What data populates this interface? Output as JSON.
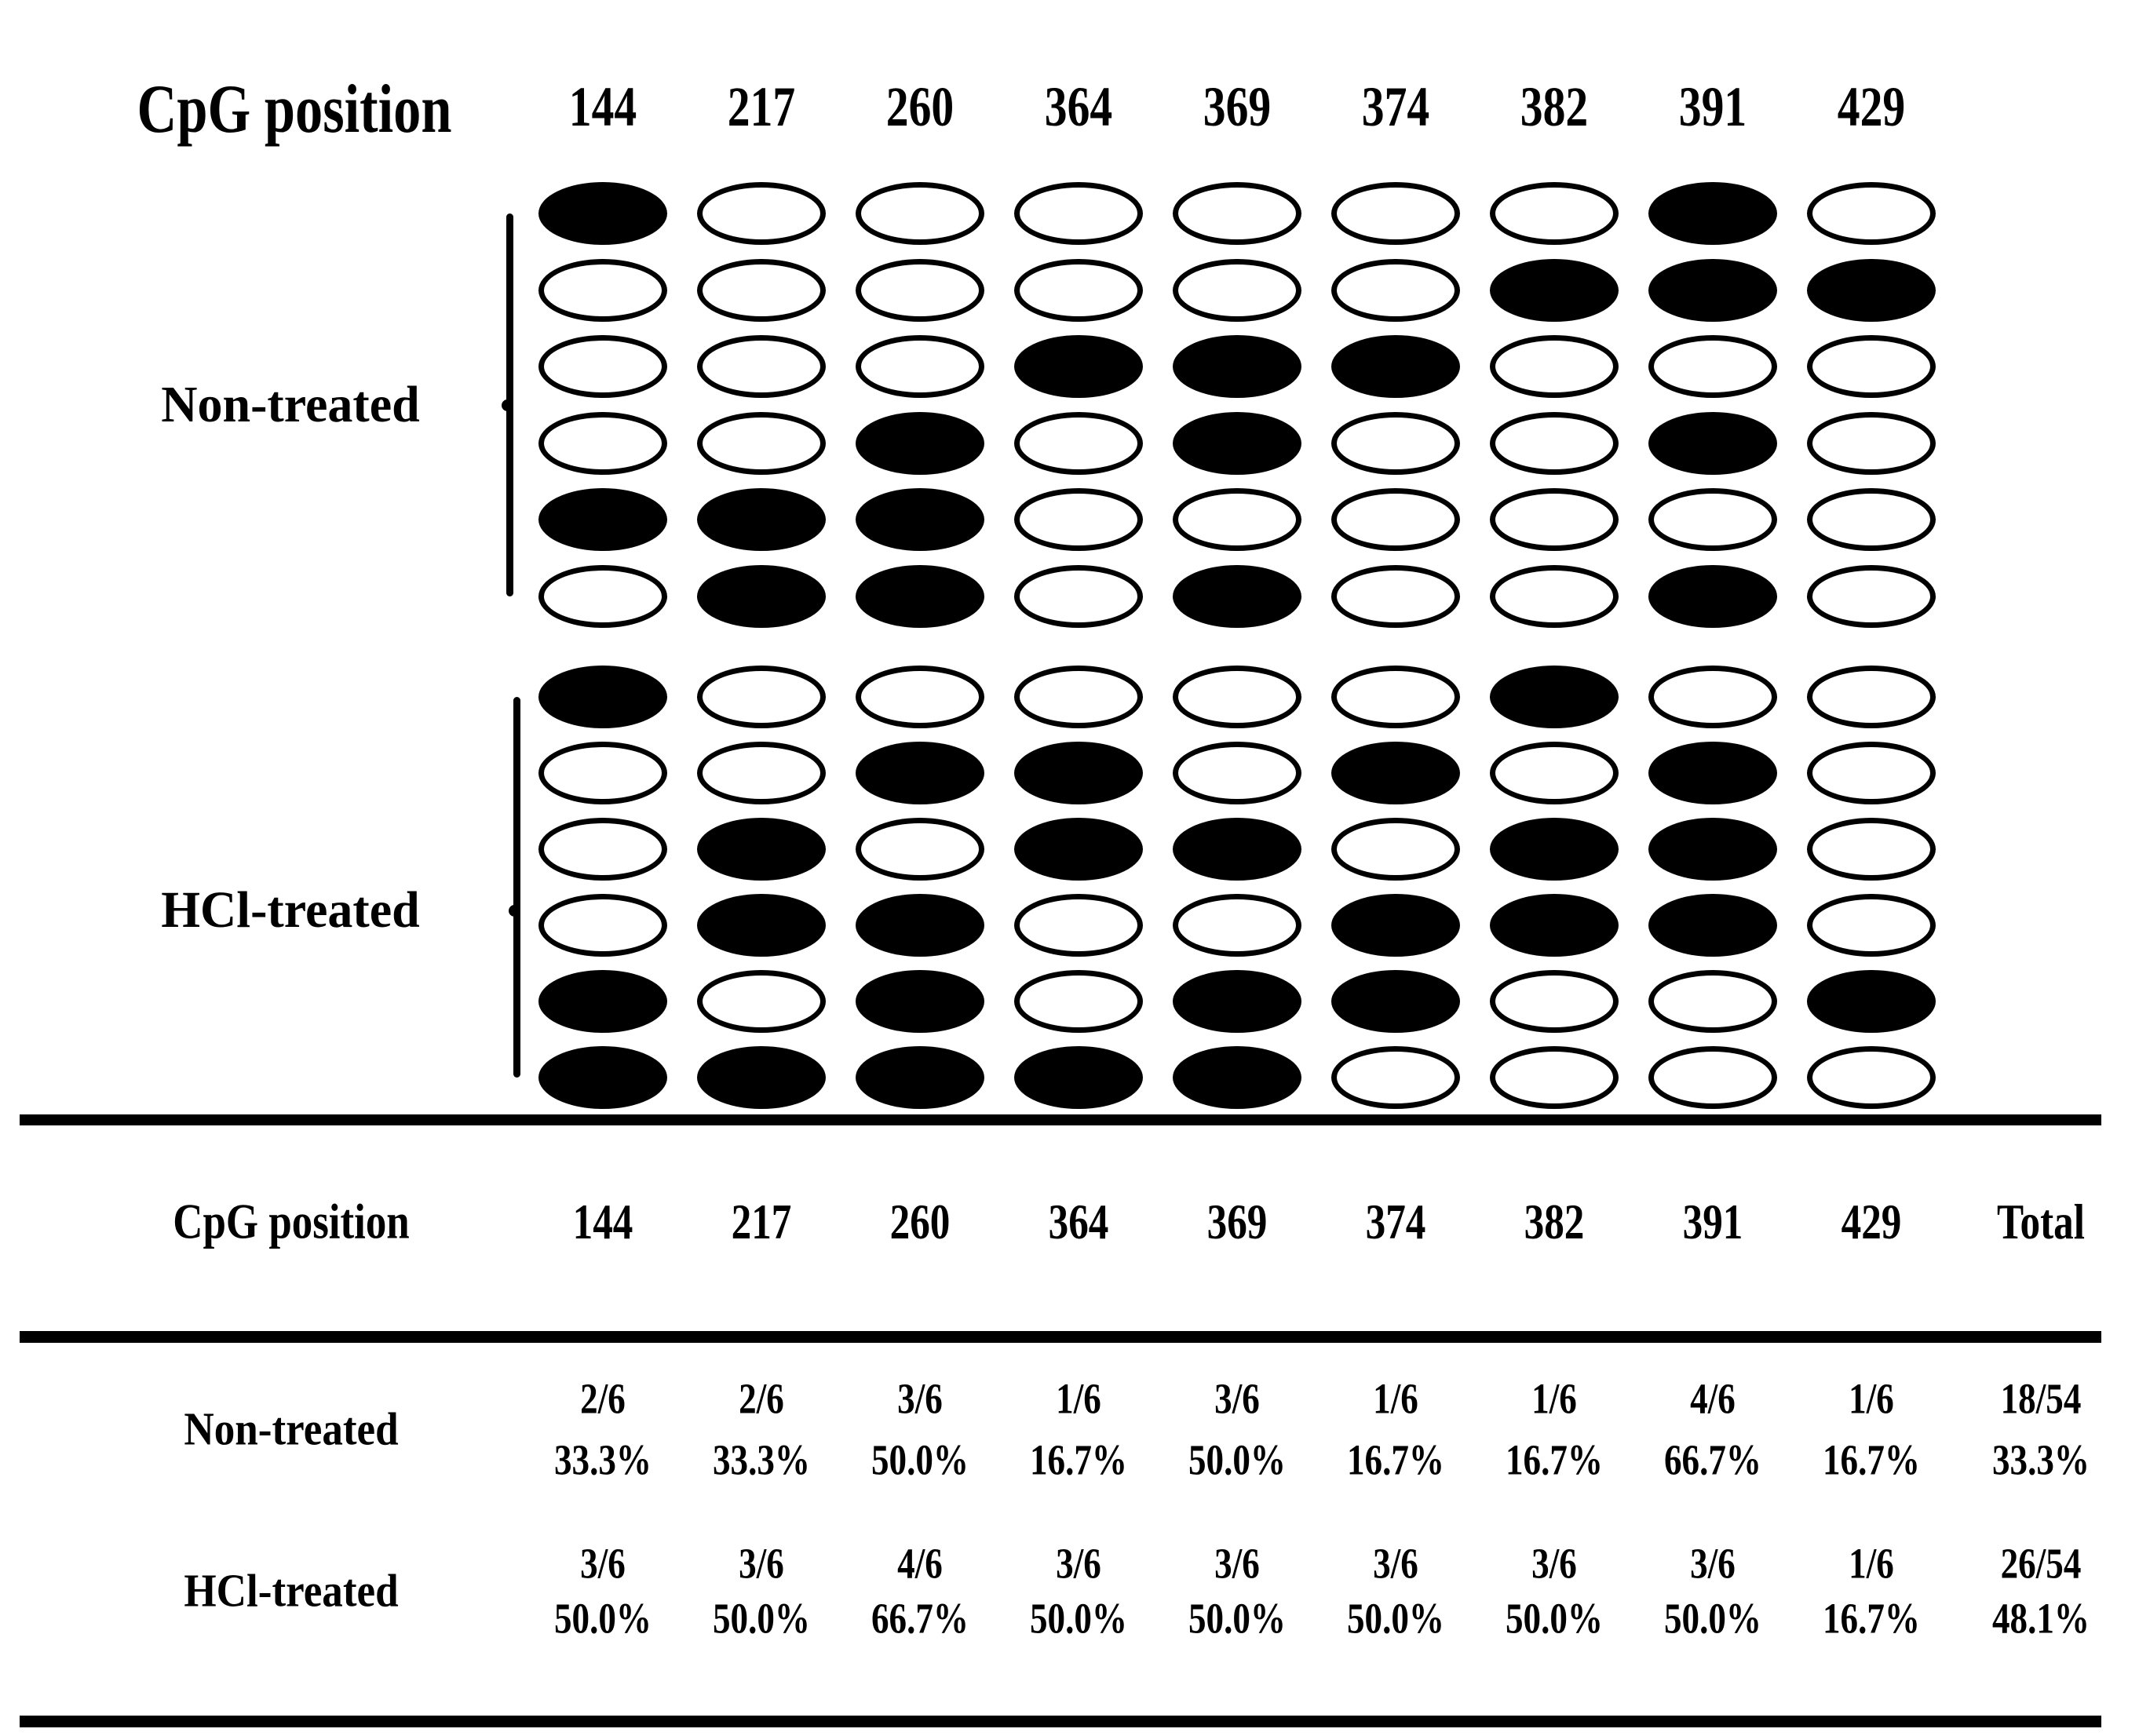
{
  "diagram": {
    "header_label": "CpG position",
    "positions": [
      "144",
      "217",
      "260",
      "364",
      "369",
      "374",
      "382",
      "391",
      "429"
    ],
    "groups": [
      {
        "label": "Non-treated",
        "rows": [
          [
            1,
            0,
            0,
            0,
            0,
            0,
            0,
            1,
            0
          ],
          [
            0,
            0,
            0,
            0,
            0,
            0,
            1,
            1,
            1
          ],
          [
            0,
            0,
            0,
            1,
            1,
            1,
            0,
            0,
            0
          ],
          [
            0,
            0,
            1,
            0,
            1,
            0,
            0,
            1,
            0
          ],
          [
            1,
            1,
            1,
            0,
            0,
            0,
            0,
            0,
            0
          ],
          [
            0,
            1,
            1,
            0,
            1,
            0,
            0,
            1,
            0
          ]
        ]
      },
      {
        "label": "HCl-treated",
        "rows": [
          [
            1,
            0,
            0,
            0,
            0,
            0,
            1,
            0,
            0
          ],
          [
            0,
            0,
            1,
            1,
            0,
            1,
            0,
            1,
            0
          ],
          [
            0,
            1,
            0,
            1,
            1,
            0,
            1,
            1,
            0
          ],
          [
            0,
            1,
            1,
            0,
            0,
            1,
            1,
            1,
            0
          ],
          [
            1,
            0,
            1,
            0,
            1,
            1,
            0,
            0,
            1
          ],
          [
            1,
            1,
            1,
            1,
            1,
            0,
            0,
            0,
            0
          ]
        ]
      }
    ]
  },
  "table": {
    "header_label": "CpG position",
    "columns": [
      "144",
      "217",
      "260",
      "364",
      "369",
      "374",
      "382",
      "391",
      "429",
      "Total"
    ],
    "rows": [
      {
        "label": "Non-treated",
        "cells": [
          {
            "fraction": "2/6",
            "percent": "33.3%"
          },
          {
            "fraction": "2/6",
            "percent": "33.3%"
          },
          {
            "fraction": "3/6",
            "percent": "50.0%"
          },
          {
            "fraction": "1/6",
            "percent": "16.7%"
          },
          {
            "fraction": "3/6",
            "percent": "50.0%"
          },
          {
            "fraction": "1/6",
            "percent": "16.7%"
          },
          {
            "fraction": "1/6",
            "percent": "16.7%"
          },
          {
            "fraction": "4/6",
            "percent": "66.7%"
          },
          {
            "fraction": "1/6",
            "percent": "16.7%"
          },
          {
            "fraction": "18/54",
            "percent": "33.3%"
          }
        ]
      },
      {
        "label": "HCl-treated",
        "cells": [
          {
            "fraction": "3/6",
            "percent": "50.0%"
          },
          {
            "fraction": "3/6",
            "percent": "50.0%"
          },
          {
            "fraction": "4/6",
            "percent": "66.7%"
          },
          {
            "fraction": "3/6",
            "percent": "50.0%"
          },
          {
            "fraction": "3/6",
            "percent": "50.0%"
          },
          {
            "fraction": "3/6",
            "percent": "50.0%"
          },
          {
            "fraction": "3/6",
            "percent": "50.0%"
          },
          {
            "fraction": "3/6",
            "percent": "50.0%"
          },
          {
            "fraction": "1/6",
            "percent": "16.7%"
          },
          {
            "fraction": "26/54",
            "percent": "48.1%"
          }
        ]
      }
    ]
  },
  "colors": {
    "ink": "#000000",
    "paper": "#ffffff"
  }
}
